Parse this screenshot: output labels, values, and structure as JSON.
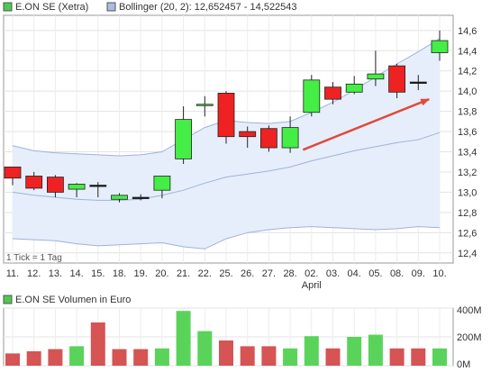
{
  "chart_data": [
    {
      "type": "candlestick",
      "legend": [
        {
          "label": "E.ON SE (Xetra)",
          "color": "#4ec94e"
        },
        {
          "label": "Bollinger (20, 2): 12,652457 - 14,522543",
          "color": "#a9bde0"
        }
      ],
      "note": "1 Tick = 1 Tag",
      "ylim": [
        12.3,
        14.75
      ],
      "yticks": [
        "12,4",
        "12,6",
        "12,8",
        "13,0",
        "13,2",
        "13,4",
        "13,6",
        "13,8",
        "14,0",
        "14,2",
        "14,4",
        "14,6"
      ],
      "yticks_values": [
        12.4,
        12.6,
        12.8,
        13.0,
        13.2,
        13.4,
        13.6,
        13.8,
        14.0,
        14.2,
        14.4,
        14.6
      ],
      "categories": [
        "11.",
        "12.",
        "13.",
        "14.",
        "15.",
        "18.",
        "19.",
        "20.",
        "21.",
        "22.",
        "25.",
        "26.",
        "27.",
        "28.",
        "02.",
        "03.",
        "04.",
        "05.",
        "08.",
        "09.",
        "10."
      ],
      "month_label": {
        "text": "April",
        "index": 14
      },
      "candles": [
        {
          "open": 13.25,
          "close": 13.14,
          "high": 13.25,
          "low": 13.07
        },
        {
          "open": 13.16,
          "close": 13.04,
          "high": 13.2,
          "low": 13.02
        },
        {
          "open": 13.15,
          "close": 13.0,
          "high": 13.17,
          "low": 12.95
        },
        {
          "open": 13.03,
          "close": 13.08,
          "high": 13.09,
          "low": 12.95
        },
        {
          "open": 13.07,
          "close": 13.07,
          "high": 13.1,
          "low": 12.95
        },
        {
          "open": 12.93,
          "close": 12.97,
          "high": 12.99,
          "low": 12.9
        },
        {
          "open": 12.95,
          "close": 12.95,
          "high": 12.98,
          "low": 12.92
        },
        {
          "open": 13.02,
          "close": 13.16,
          "high": 13.16,
          "low": 12.94
        },
        {
          "open": 13.33,
          "close": 13.72,
          "high": 13.85,
          "low": 13.28
        },
        {
          "open": 13.86,
          "close": 13.87,
          "high": 13.95,
          "low": 13.75
        },
        {
          "open": 13.98,
          "close": 13.55,
          "high": 14.0,
          "low": 13.48
        },
        {
          "open": 13.6,
          "close": 13.55,
          "high": 13.65,
          "low": 13.44
        },
        {
          "open": 13.63,
          "close": 13.44,
          "high": 13.66,
          "low": 13.4
        },
        {
          "open": 13.44,
          "close": 13.64,
          "high": 13.75,
          "low": 13.39
        },
        {
          "open": 13.79,
          "close": 14.11,
          "high": 14.16,
          "low": 13.75
        },
        {
          "open": 14.04,
          "close": 13.92,
          "high": 14.09,
          "low": 13.87
        },
        {
          "open": 13.99,
          "close": 14.07,
          "high": 14.15,
          "low": 13.97
        },
        {
          "open": 14.12,
          "close": 14.17,
          "high": 14.4,
          "low": 14.05
        },
        {
          "open": 14.25,
          "close": 13.99,
          "high": 14.27,
          "low": 13.93
        },
        {
          "open": 14.09,
          "close": 14.09,
          "high": 14.16,
          "low": 14.01
        },
        {
          "open": 14.38,
          "close": 14.5,
          "high": 14.6,
          "low": 14.3
        }
      ],
      "bollinger": {
        "upper": [
          13.46,
          13.41,
          13.39,
          13.38,
          13.37,
          13.36,
          13.37,
          13.4,
          13.52,
          13.64,
          13.71,
          13.69,
          13.68,
          13.7,
          13.79,
          13.89,
          14.01,
          14.14,
          14.27,
          14.39,
          14.52
        ],
        "middle": [
          13.0,
          12.97,
          12.95,
          12.93,
          12.92,
          12.92,
          12.93,
          12.97,
          13.02,
          13.09,
          13.15,
          13.18,
          13.21,
          13.25,
          13.31,
          13.36,
          13.41,
          13.45,
          13.49,
          13.52,
          13.59
        ],
        "lower": [
          12.54,
          12.53,
          12.52,
          12.49,
          12.47,
          12.48,
          12.49,
          12.5,
          12.46,
          12.44,
          12.54,
          12.6,
          12.63,
          12.65,
          12.66,
          12.65,
          12.64,
          12.63,
          12.64,
          12.66,
          12.65
        ]
      },
      "trend_arrow": {
        "from": {
          "index": 13.6,
          "value": 13.42
        },
        "to": {
          "index": 19.5,
          "value": 13.92
        }
      }
    },
    {
      "type": "bar",
      "title": "E.ON SE Volumen in Euro",
      "legend_color": "#4ec94e",
      "ylim": [
        0,
        400
      ],
      "yticks": [
        "400M",
        "200M",
        "0M"
      ],
      "yticks_values": [
        400,
        200,
        0
      ],
      "unit": "M",
      "values": [
        85,
        100,
        115,
        135,
        300,
        115,
        115,
        120,
        380,
        240,
        175,
        135,
        135,
        120,
        205,
        120,
        200,
        215,
        120,
        120,
        120
      ],
      "colors": [
        "red",
        "red",
        "red",
        "green",
        "red",
        "red",
        "red",
        "green",
        "green",
        "green",
        "red",
        "red",
        "red",
        "green",
        "green",
        "red",
        "green",
        "green",
        "red",
        "red",
        "green"
      ]
    }
  ]
}
